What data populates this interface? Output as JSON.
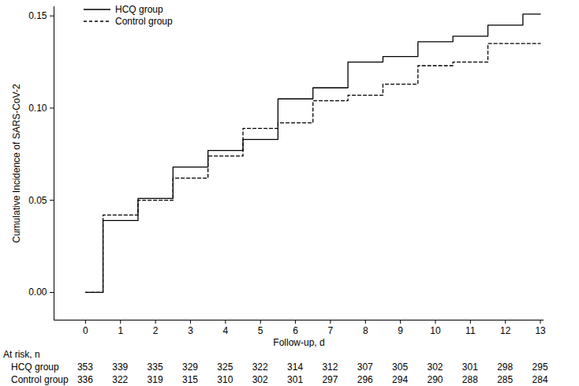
{
  "chart_data": {
    "type": "line",
    "x_label": "Follow-up, d",
    "y_label": "Cumulative Incidence of SARS-CoV-2",
    "x": [
      0,
      0.5,
      1.5,
      2.5,
      3.5,
      4.5,
      5.5,
      6.5,
      7.5,
      8.5,
      9.5,
      10.5,
      11.5,
      12.5,
      13
    ],
    "series": [
      {
        "name": "HCQ group",
        "color": "#000000",
        "line_style": "solid",
        "values": [
          0,
          0.039,
          0.051,
          0.068,
          0.077,
          0.083,
          0.105,
          0.111,
          0.125,
          0.128,
          0.136,
          0.139,
          0.145,
          0.151,
          0.151
        ]
      },
      {
        "name": "Control group",
        "color": "#000000",
        "line_style": "dashed",
        "values": [
          0,
          0.042,
          0.05,
          0.062,
          0.074,
          0.089,
          0.092,
          0.104,
          0.107,
          0.113,
          0.123,
          0.125,
          0.135,
          0.135,
          0.135
        ]
      }
    ],
    "xlim": [
      -0.9,
      13.1
    ],
    "xticks": [
      0,
      1,
      2,
      3,
      4,
      5,
      6,
      7,
      8,
      9,
      10,
      11,
      12,
      13
    ],
    "ylim": [
      -0.015,
      0.155
    ],
    "yticks": [
      {
        "value": 0,
        "label": "0.00"
      },
      {
        "value": 0.05,
        "label": "0.05"
      },
      {
        "value": 0.1,
        "label": "0.10"
      },
      {
        "value": 0.15,
        "label": "0.15"
      }
    ],
    "legend": "top-left",
    "grid": false,
    "at_risk": {
      "label": "At risk, n",
      "x": [
        0,
        1,
        2,
        3,
        4,
        5,
        6,
        7,
        8,
        9,
        10,
        11,
        12,
        13
      ],
      "series": [
        {
          "name": "HCQ group",
          "values": [
            353,
            339,
            335,
            329,
            325,
            322,
            314,
            312,
            307,
            305,
            302,
            301,
            298,
            295
          ]
        },
        {
          "name": "Control group",
          "values": [
            336,
            322,
            319,
            315,
            310,
            302,
            301,
            297,
            296,
            294,
            290,
            288,
            285,
            284
          ]
        }
      ]
    }
  }
}
